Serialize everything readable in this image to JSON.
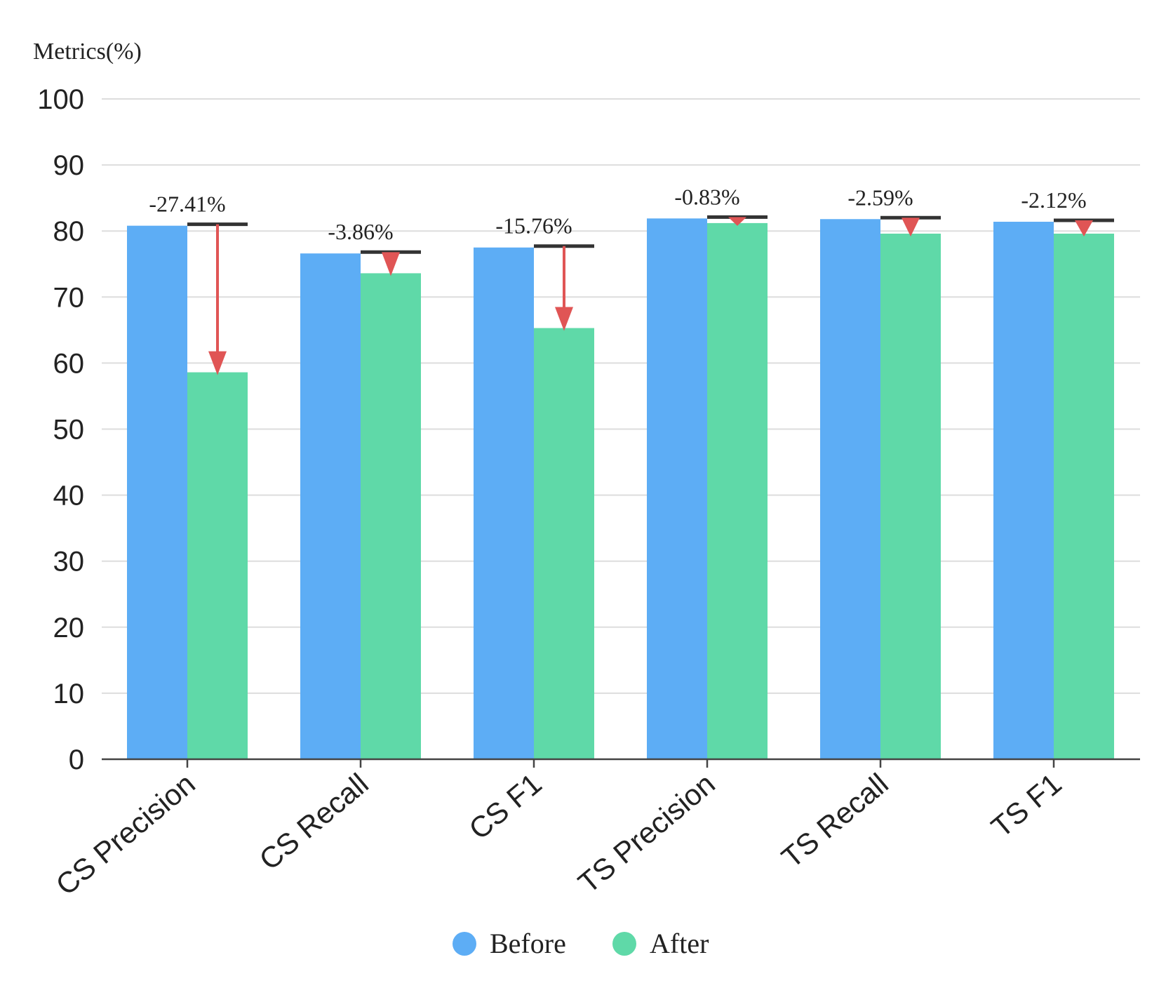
{
  "chart_data": {
    "type": "bar",
    "ylabel": "Metrics(%)",
    "ylim": [
      0,
      100
    ],
    "yticks": [
      0,
      10,
      20,
      30,
      40,
      50,
      60,
      70,
      80,
      90,
      100
    ],
    "grid": true,
    "legend_position": "bottom-center",
    "categories": [
      "CS Precision",
      "CS Recall",
      "CS F1",
      "TS Precision",
      "TS Recall",
      "TS F1"
    ],
    "series": [
      {
        "name": "Before",
        "color": "#5DADF5",
        "values": [
          80.8,
          76.6,
          77.5,
          81.9,
          81.8,
          81.4
        ]
      },
      {
        "name": "After",
        "color": "#5FD9A8",
        "values": [
          58.6,
          73.6,
          65.3,
          81.2,
          79.6,
          79.6
        ]
      }
    ],
    "annotations": [
      "-27.41%",
      "-3.86%",
      "-15.76%",
      "-0.83%",
      "-2.59%",
      "-2.12%"
    ],
    "annotation_color": "#E05555",
    "reference_line_color": "#333333"
  }
}
